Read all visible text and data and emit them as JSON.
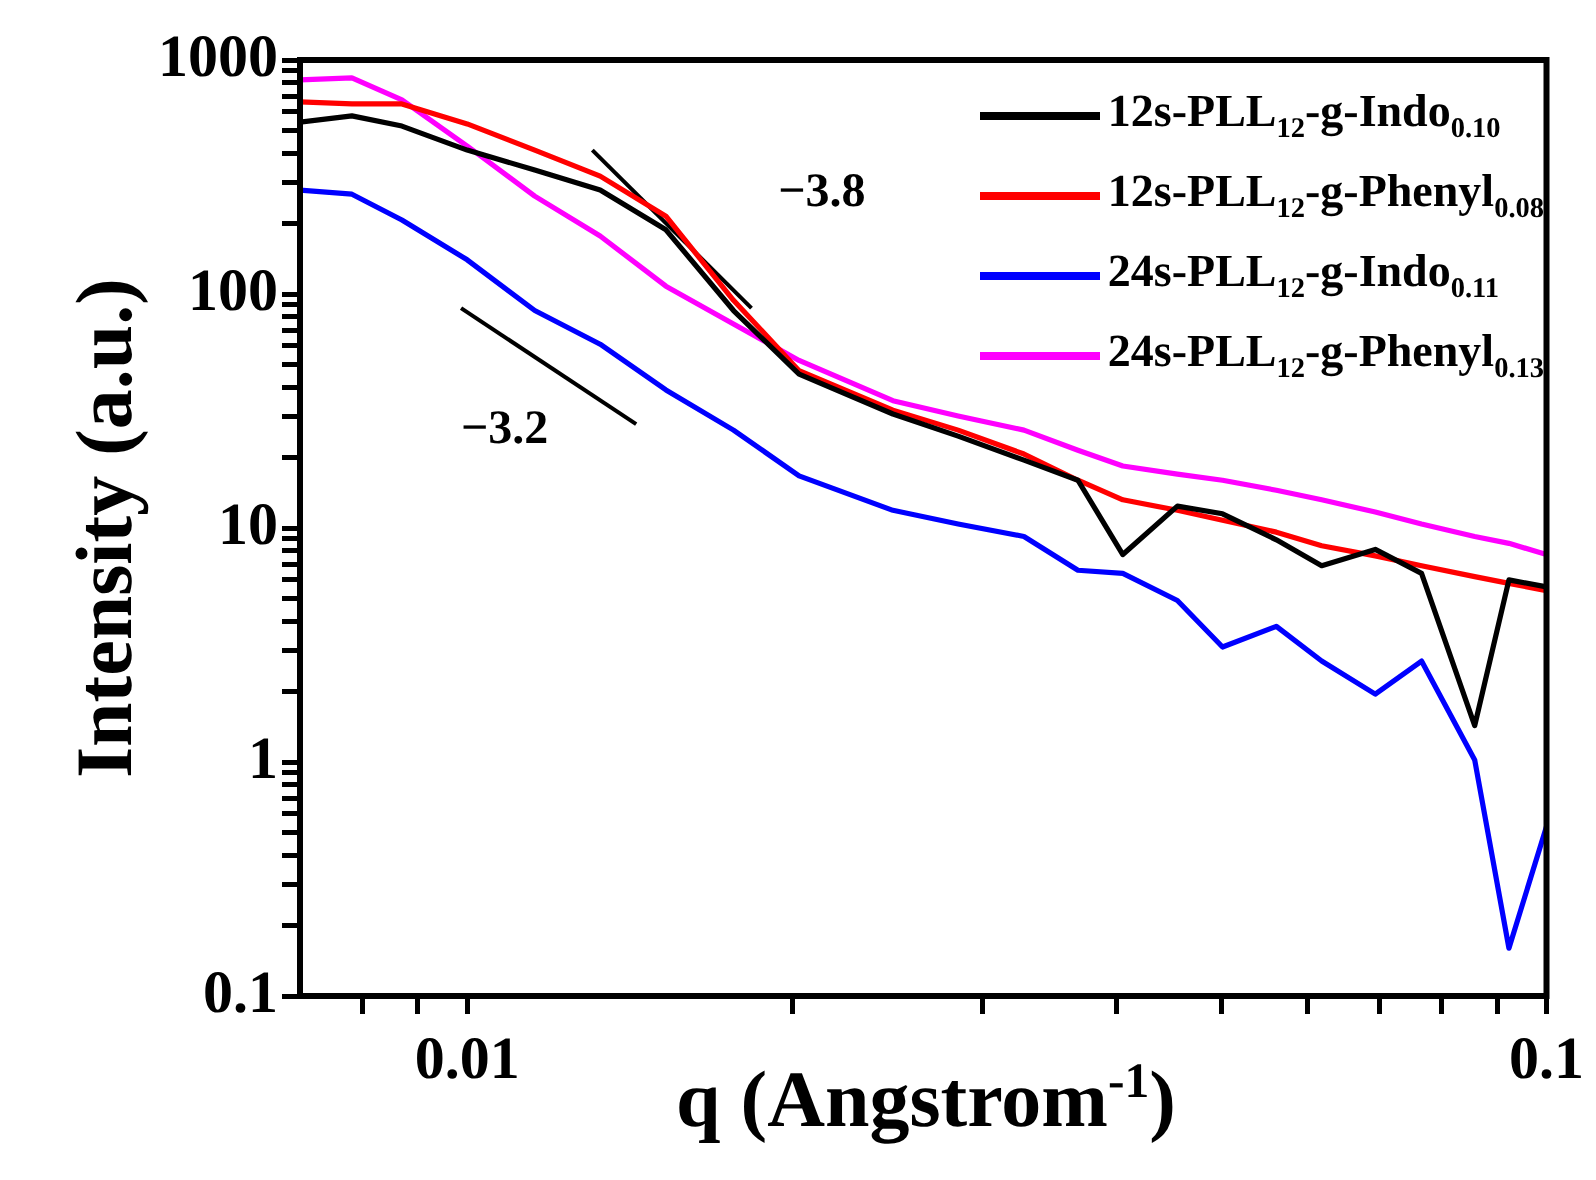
{
  "chart_data": {
    "type": "line",
    "xlabel": "q (Angstrom$^{-1}$)",
    "ylabel": "Intensity (a.u.)",
    "log": "xy",
    "grid": false,
    "legend": "top right",
    "marker": "none",
    "line_style": "solid",
    "xlim": [
      0.007,
      0.1
    ],
    "ylim": [
      0.1,
      1000
    ],
    "xticks": [
      {
        "value": 0.008,
        "label": null
      },
      {
        "value": 0.009,
        "label": null
      },
      0.01,
      {
        "value": 0.02,
        "label": null
      },
      {
        "value": 0.03,
        "label": null
      },
      {
        "value": 0.04,
        "label": null
      },
      {
        "value": 0.05,
        "label": null
      },
      {
        "value": 0.06,
        "label": null
      },
      {
        "value": 0.07,
        "label": null
      },
      {
        "value": 0.08,
        "label": null
      },
      {
        "value": 0.09,
        "label": null
      },
      0.1
    ],
    "yticks": [
      0.1,
      {
        "value": 0.2,
        "label": null
      },
      {
        "value": 0.3,
        "label": null
      },
      {
        "value": 0.4,
        "label": null
      },
      {
        "value": 0.5,
        "label": null
      },
      {
        "value": 0.6,
        "label": null
      },
      {
        "value": 0.7,
        "label": null
      },
      {
        "value": 0.8,
        "label": null
      },
      {
        "value": 0.9,
        "label": null
      },
      1,
      {
        "value": 2,
        "label": null
      },
      {
        "value": 3,
        "label": null
      },
      {
        "value": 4,
        "label": null
      },
      {
        "value": 5,
        "label": null
      },
      {
        "value": 6,
        "label": null
      },
      {
        "value": 7,
        "label": null
      },
      {
        "value": 8,
        "label": null
      },
      {
        "value": 9,
        "label": null
      },
      10,
      {
        "value": 20,
        "label": null
      },
      {
        "value": 30,
        "label": null
      },
      {
        "value": 40,
        "label": null
      },
      {
        "value": 50,
        "label": null
      },
      {
        "value": 60,
        "label": null
      },
      {
        "value": 70,
        "label": null
      },
      {
        "value": 80,
        "label": null
      },
      {
        "value": 90,
        "label": null
      },
      100,
      {
        "value": 200,
        "label": null
      },
      {
        "value": 300,
        "label": null
      },
      {
        "value": 400,
        "label": null
      },
      {
        "value": 500,
        "label": null
      },
      {
        "value": 600,
        "label": null
      },
      {
        "value": 700,
        "label": null
      },
      {
        "value": 800,
        "label": null
      },
      {
        "value": 900,
        "label": null
      },
      1000
    ],
    "x": [
      0.007,
      0.00782,
      0.0087,
      0.01,
      0.01155,
      0.01328,
      0.01528,
      0.01765,
      0.0203,
      0.0248,
      0.0285,
      0.0328,
      0.0368,
      0.0405,
      0.0455,
      0.0501,
      0.0562,
      0.0619,
      0.0694,
      0.0766,
      0.0858,
      0.0923,
      0.1
    ],
    "series": [
      {
        "name": "12s-PLL$_{12}$-g-Indo$_{0.10}$",
        "color": "#000000",
        "values": [
          543,
          577,
          522,
          412,
          339,
          278,
          188,
          85,
          45.5,
          30.7,
          24.7,
          19.5,
          16.0,
          7.7,
          12.4,
          11.5,
          8.9,
          6.9,
          8.1,
          6.4,
          1.43,
          6.0,
          5.6
        ]
      },
      {
        "name": "12s-PLL$_{12}$-g-Phenyl$_{0.08}$",
        "color": "#ff0000",
        "values": [
          662,
          649,
          649,
          533,
          412,
          319,
          215,
          94,
          47,
          31.9,
          26.2,
          20.7,
          16.0,
          13.2,
          11.9,
          10.8,
          9.6,
          8.4,
          7.6,
          6.9,
          6.2,
          5.8,
          5.4
        ]
      },
      {
        "name": "24s-PLL$_{12}$-g-Indo$_{0.11}$",
        "color": "#0000ff",
        "values": [
          278,
          267,
          207,
          140,
          85,
          61,
          38.9,
          26.2,
          16.7,
          11.9,
          10.4,
          9.2,
          6.6,
          6.4,
          4.9,
          3.1,
          3.8,
          2.7,
          1.95,
          2.7,
          1.02,
          0.16,
          0.53
        ]
      },
      {
        "name": "24s-PLL$_{12}$-g-Phenyl$_{0.13}$",
        "color": "#ff00ff",
        "values": [
          822,
          838,
          675,
          429,
          262,
          177,
          108,
          74.5,
          52,
          35,
          30.1,
          26.2,
          21.5,
          18.4,
          17.0,
          16.0,
          14.5,
          13.2,
          11.7,
          10.4,
          9.2,
          8.6,
          7.7
        ]
      },
      {
        "type": "line",
        "color": "#000000",
        "x": [
          0.01306,
          0.01834
        ],
        "values": [
          412,
          87
        ]
      },
      {
        "type": "line",
        "color": "#000000",
        "x": [
          0.00987,
          0.01434
        ],
        "values": [
          87,
          27.8
        ]
      }
    ],
    "annotations": [
      "−3.8",
      "−3.2"
    ]
  }
}
